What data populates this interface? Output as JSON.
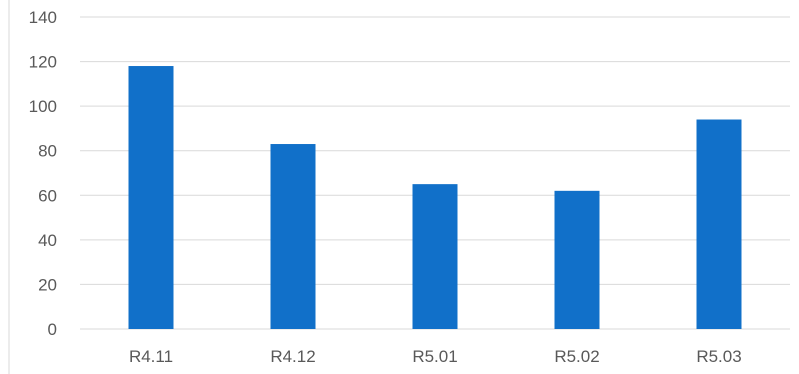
{
  "chart_data": {
    "type": "bar",
    "categories": [
      "R4.11",
      "R4.12",
      "R5.01",
      "R5.02",
      "R5.03"
    ],
    "values": [
      118,
      83,
      65,
      62,
      94
    ],
    "yticks": [
      "0",
      "20",
      "40",
      "60",
      "80",
      "100",
      "120",
      "140"
    ],
    "ylim": [
      0,
      140
    ],
    "grid": true,
    "bar_color": "#1170C9",
    "title": "",
    "xlabel": "",
    "ylabel": ""
  }
}
